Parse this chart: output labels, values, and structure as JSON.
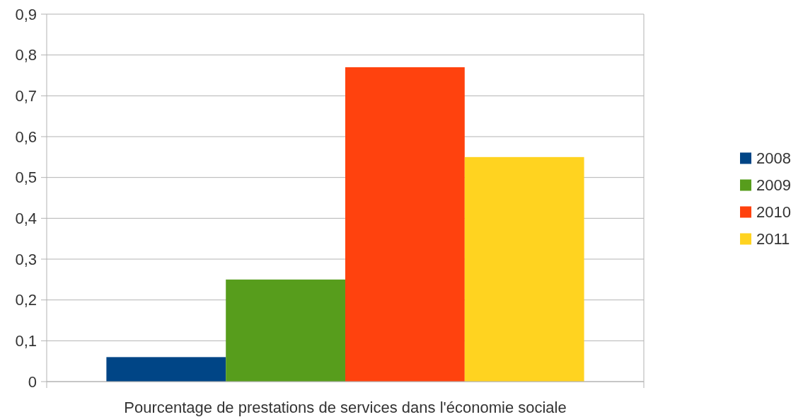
{
  "chart_data": {
    "type": "bar",
    "categories": [
      "Pourcentage de prestations de services dans l'économie sociale"
    ],
    "series": [
      {
        "name": "2008",
        "color": "#004586",
        "values": [
          0.06
        ]
      },
      {
        "name": "2009",
        "color": "#579d1c",
        "values": [
          0.25
        ]
      },
      {
        "name": "2010",
        "color": "#ff420e",
        "values": [
          0.77
        ]
      },
      {
        "name": "2011",
        "color": "#ffd320",
        "values": [
          0.55
        ]
      }
    ],
    "ylim": [
      0,
      0.9
    ],
    "yticks": [
      {
        "value": 0,
        "label": "0"
      },
      {
        "value": 0.1,
        "label": "0,1"
      },
      {
        "value": 0.2,
        "label": "0,2"
      },
      {
        "value": 0.3,
        "label": "0,3"
      },
      {
        "value": 0.4,
        "label": "0,4"
      },
      {
        "value": 0.5,
        "label": "0,5"
      },
      {
        "value": 0.6,
        "label": "0,6"
      },
      {
        "value": 0.7,
        "label": "0,7"
      },
      {
        "value": 0.8,
        "label": "0,8"
      },
      {
        "value": 0.9,
        "label": "0,9"
      }
    ],
    "grid": "y",
    "legend": "right"
  }
}
